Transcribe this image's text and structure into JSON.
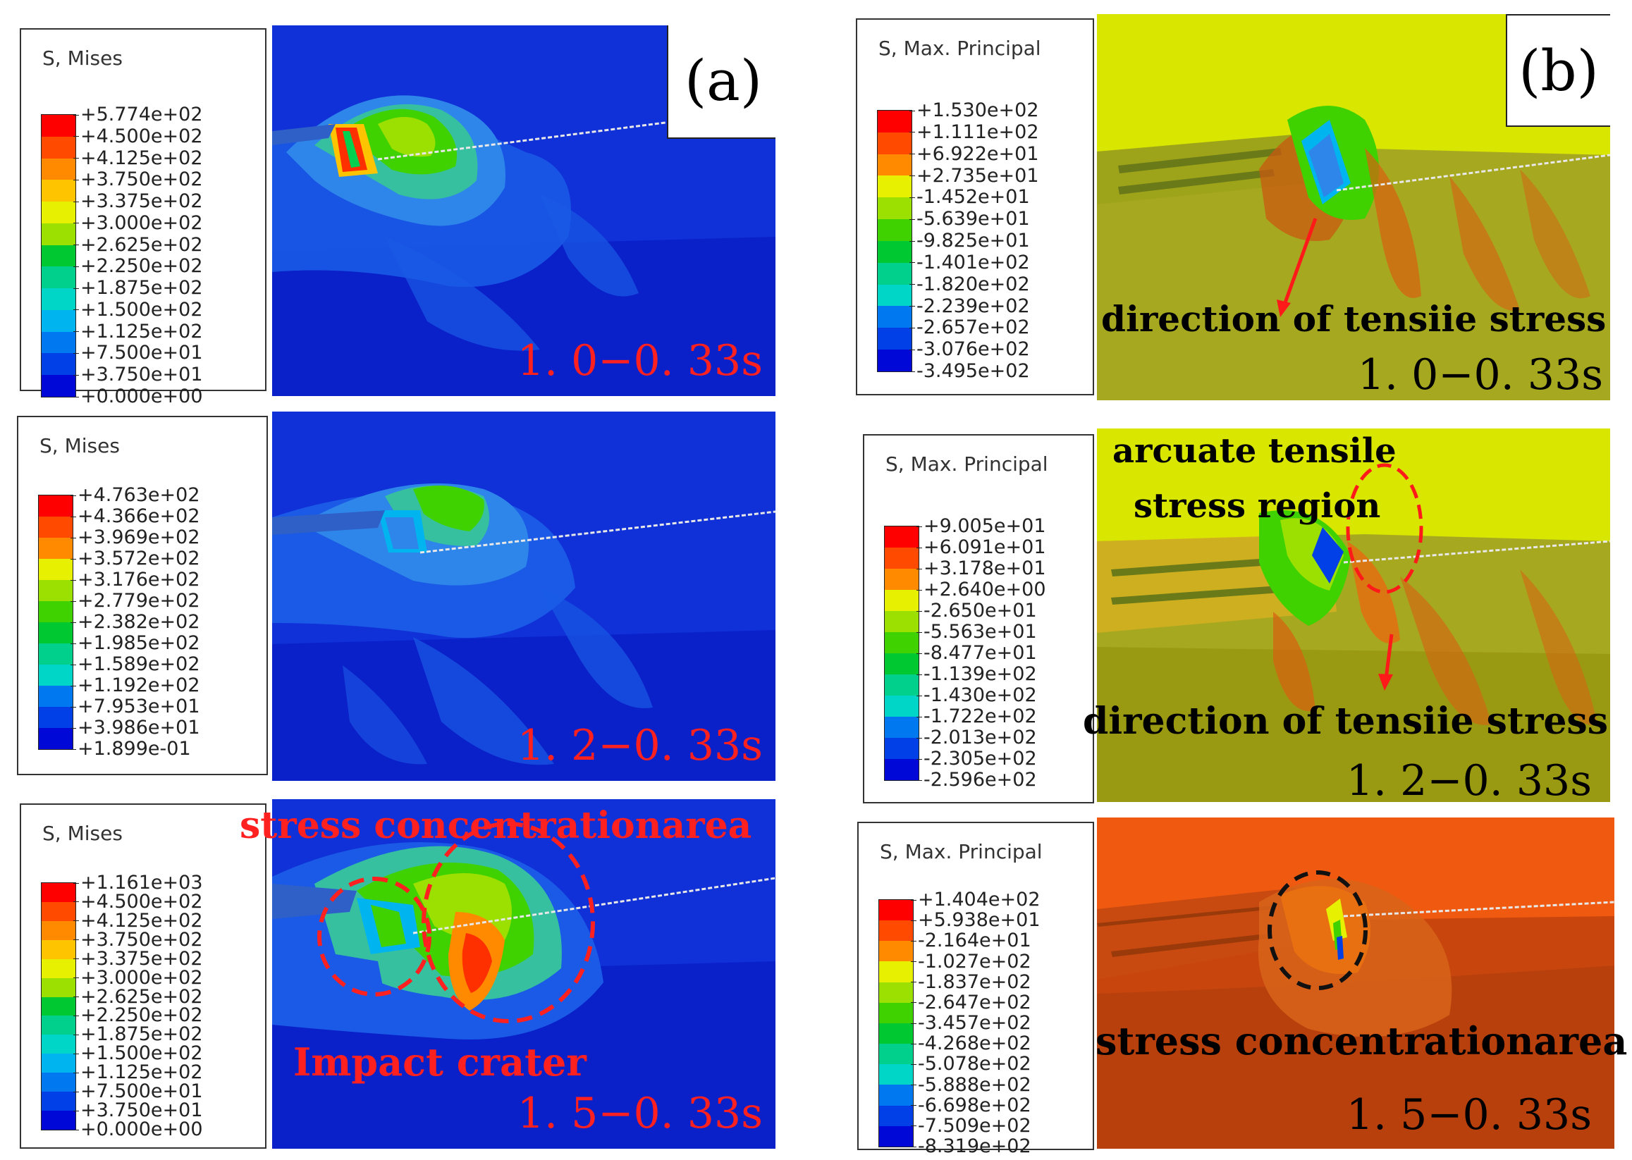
{
  "colorscale": [
    "#ff0000",
    "#ff4a00",
    "#ff8a00",
    "#ffc400",
    "#e6f000",
    "#9be000",
    "#3fd200",
    "#00c830",
    "#00d08c",
    "#00d6c8",
    "#00b4f0",
    "#0078f0",
    "#0040e6",
    "#0008d8"
  ],
  "panel_a_label": "(a)",
  "panel_b_label": "(b)",
  "a1": {
    "legend_title": "S, Mises",
    "values": [
      "+5.774e+02",
      "+4.500e+02",
      "+4.125e+02",
      "+3.750e+02",
      "+3.375e+02",
      "+3.000e+02",
      "+2.625e+02",
      "+2.250e+02",
      "+1.875e+02",
      "+1.500e+02",
      "+1.125e+02",
      "+7.500e+01",
      "+3.750e+01",
      "+0.000e+00"
    ],
    "time": "1. 0−0. 33s"
  },
  "a2": {
    "legend_title": "S, Mises",
    "values": [
      "+4.763e+02",
      "+4.366e+02",
      "+3.969e+02",
      "+3.572e+02",
      "+3.176e+02",
      "+2.779e+02",
      "+2.382e+02",
      "+1.985e+02",
      "+1.589e+02",
      "+1.192e+02",
      "+7.953e+01",
      "+3.986e+01",
      "+1.899e-01"
    ],
    "time": "1. 2−0. 33s"
  },
  "a3": {
    "legend_title": "S, Mises",
    "values": [
      "+1.161e+03",
      "+4.500e+02",
      "+4.125e+02",
      "+3.750e+02",
      "+3.375e+02",
      "+3.000e+02",
      "+2.625e+02",
      "+2.250e+02",
      "+1.875e+02",
      "+1.500e+02",
      "+1.125e+02",
      "+7.500e+01",
      "+3.750e+01",
      "+0.000e+00"
    ],
    "time": "1. 5−0. 33s",
    "annotation_top": "stress concentrationarea",
    "annotation_bottom": "Impact crater"
  },
  "b1": {
    "legend_title": "S, Max. Principal",
    "values": [
      "+1.530e+02",
      "+1.111e+02",
      "+6.922e+01",
      "+2.735e+01",
      "-1.452e+01",
      "-5.639e+01",
      "-9.825e+01",
      "-1.401e+02",
      "-1.820e+02",
      "-2.239e+02",
      "-2.657e+02",
      "-3.076e+02",
      "-3.495e+02"
    ],
    "time": "1. 0−0. 33s",
    "annotation": "direction of tensiie stress"
  },
  "b2": {
    "legend_title": "S, Max. Principal",
    "values": [
      "+9.005e+01",
      "+6.091e+01",
      "+3.178e+01",
      "+2.640e+00",
      "-2.650e+01",
      "-5.563e+01",
      "-8.477e+01",
      "-1.139e+02",
      "-1.430e+02",
      "-1.722e+02",
      "-2.013e+02",
      "-2.305e+02",
      "-2.596e+02"
    ],
    "time": "1. 2−0. 33s",
    "annotation_top_1": "arcuate tensile",
    "annotation_top_2": "stress region",
    "annotation_bottom": "direction of tensiie stress"
  },
  "b3": {
    "legend_title": "S, Max. Principal",
    "values": [
      "+1.404e+02",
      "+5.938e+01",
      "-2.164e+01",
      "-1.027e+02",
      "-1.837e+02",
      "-2.647e+02",
      "-3.457e+02",
      "-4.268e+02",
      "-5.078e+02",
      "-5.888e+02",
      "-6.698e+02",
      "-7.509e+02",
      "-8.319e+02"
    ],
    "time": "1. 5−0. 33s",
    "annotation": "stress concentrationarea"
  }
}
